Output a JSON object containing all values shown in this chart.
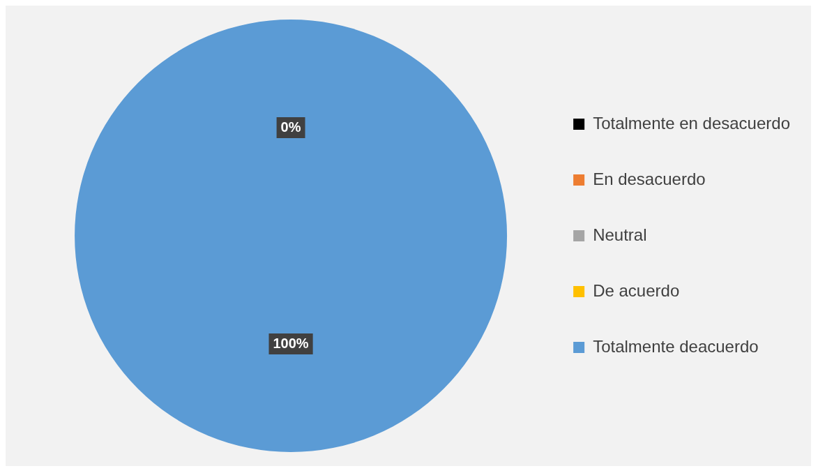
{
  "chart_data": {
    "type": "pie",
    "categories": [
      "Totalmente en desacuerdo",
      "En desacuerdo",
      "Neutral",
      "De acuerdo",
      "Totalmente deacuerdo"
    ],
    "values": [
      0,
      0,
      0,
      0,
      100
    ],
    "colors": [
      "#000000",
      "#ed7d31",
      "#a5a5a5",
      "#ffc000",
      "#5b9bd5"
    ],
    "value_labels": [
      "0%",
      null,
      null,
      null,
      "100%"
    ],
    "legend": "right"
  }
}
